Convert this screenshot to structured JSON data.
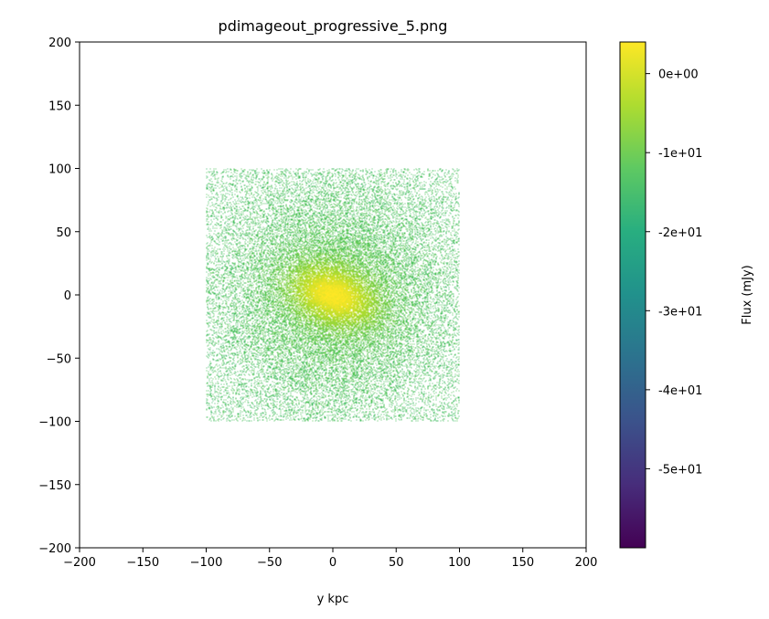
{
  "chart_data": {
    "type": "heatmap",
    "title": "pdimageout_progressive_5.png",
    "xlabel": "y kpc",
    "ylabel": "",
    "xlim": [
      -200,
      200
    ],
    "ylim": [
      -200,
      200
    ],
    "x_ticks": [
      -200,
      -150,
      -100,
      -50,
      0,
      50,
      100,
      150,
      200
    ],
    "y_ticks": [
      -200,
      -150,
      -100,
      -50,
      0,
      50,
      100,
      150,
      200
    ],
    "x_tick_labels": [
      "−200",
      "−150",
      "−100",
      "−50",
      "0",
      "50",
      "100",
      "150",
      "200"
    ],
    "y_tick_labels": [
      "−200",
      "−150",
      "−100",
      "−50",
      "0",
      "50",
      "100",
      "150",
      "200"
    ],
    "data_extent": {
      "x": [
        -100,
        100
      ],
      "y": [
        -100,
        100
      ]
    },
    "colormap": "viridis",
    "colorbar": {
      "label": "Flux (mJy)",
      "range": [
        -60,
        4
      ],
      "ticks": [
        0,
        -10,
        -20,
        -30,
        -40,
        -50
      ],
      "tick_labels": [
        "0e+00",
        "-1e+01",
        "-2e+01",
        "-3e+01",
        "-4e+01",
        "-5e+01"
      ]
    },
    "colors": {
      "cmap_low": "#440154",
      "cmap_mid": "#21918c",
      "cmap_high": "#fde725"
    }
  }
}
